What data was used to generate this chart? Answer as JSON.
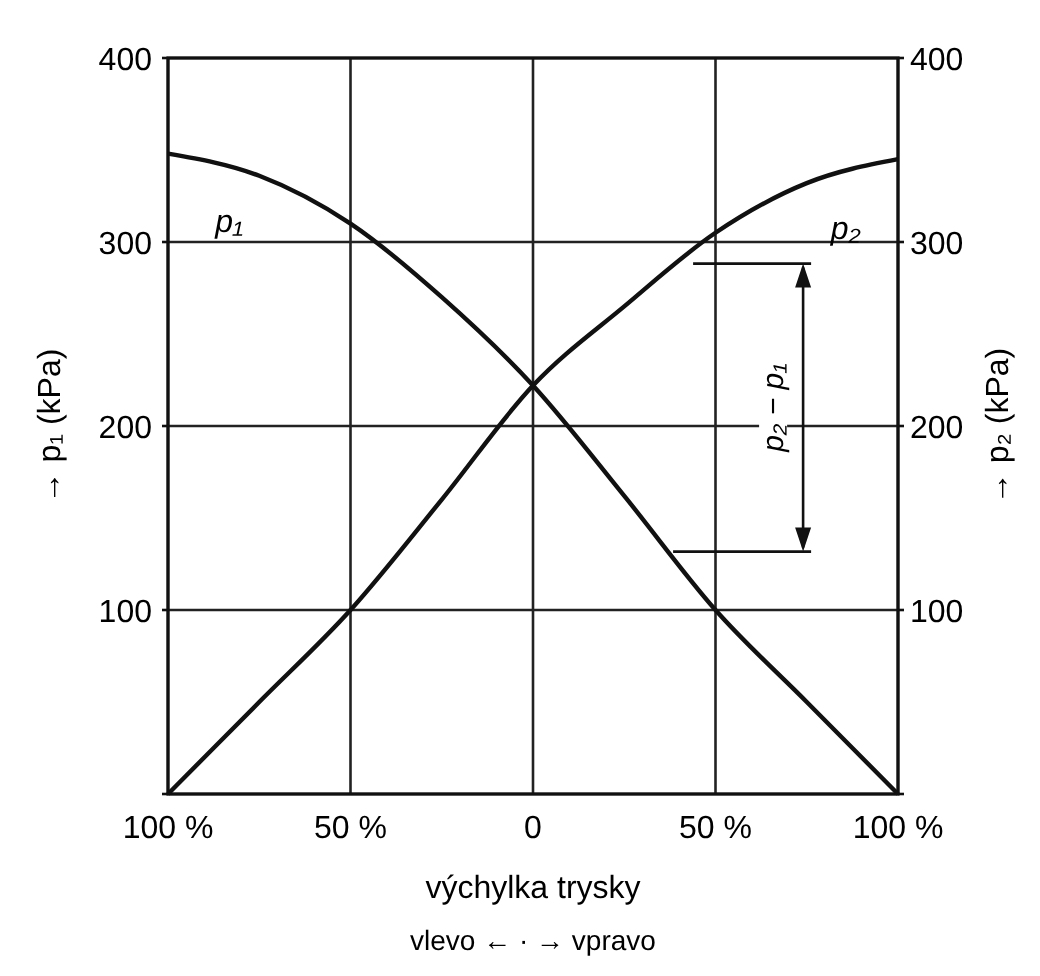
{
  "chart_data": {
    "type": "line",
    "xlabel": "výchylka trysky",
    "ylabel": "→ p₁ (kPa)",
    "y2label": "→ p₂ (kPa)",
    "x": [
      -100,
      -75,
      -50,
      -25,
      0,
      25,
      50,
      75,
      100
    ],
    "series": [
      {
        "name": "p₁",
        "color": "#111111",
        "values": [
          348,
          336,
          310,
          270,
          222,
          162,
          100,
          50,
          0
        ]
      },
      {
        "name": "p₂",
        "color": "#111111",
        "values": [
          0,
          50,
          100,
          160,
          222,
          265,
          305,
          332,
          345
        ]
      }
    ],
    "xlim": [
      -100,
      100
    ],
    "xticks": [
      {
        "value": -100,
        "label": "100 %"
      },
      {
        "value": -50,
        "label": "50 %"
      },
      0,
      {
        "value": 50,
        "label": "50 %"
      },
      {
        "value": 100,
        "label": "100 %"
      }
    ],
    "ylim": [
      0,
      400
    ],
    "yticks": [
      {
        "value": 0,
        "label": null
      },
      100,
      200,
      300,
      400
    ],
    "y2lim": [
      0,
      400
    ],
    "y2ticks": [
      {
        "value": 0,
        "label": null
      },
      100,
      200,
      300,
      400
    ],
    "grid": true,
    "marker": "none",
    "line_style": "solid",
    "annotations": [
      "p₂ − p₁",
      "vlevo ← · → vpravo"
    ]
  }
}
